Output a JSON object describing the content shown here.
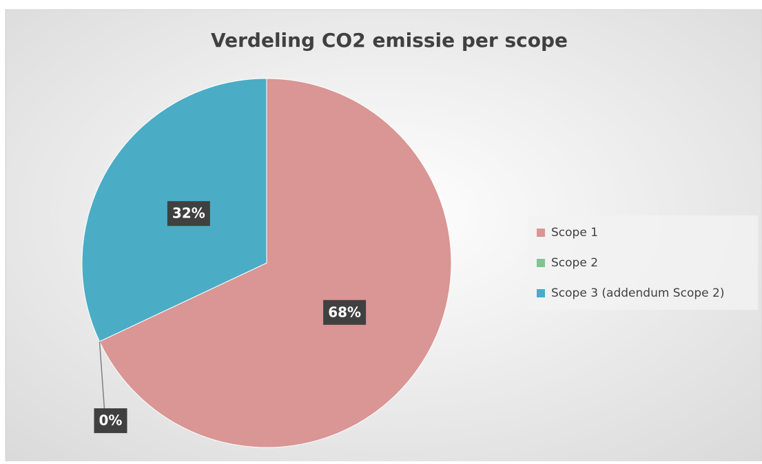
{
  "chart_data": {
    "type": "pie",
    "title": "Verdeling CO2 emissie per scope",
    "categories": [
      "Scope 1",
      "Scope 2",
      "Scope 3 (addendum Scope 2)"
    ],
    "values": [
      68,
      0,
      32
    ],
    "value_labels": [
      "68%",
      "0%",
      "32%"
    ],
    "colors": [
      "#d99694",
      "#7fc591",
      "#4bacc6"
    ],
    "legend": "right"
  }
}
